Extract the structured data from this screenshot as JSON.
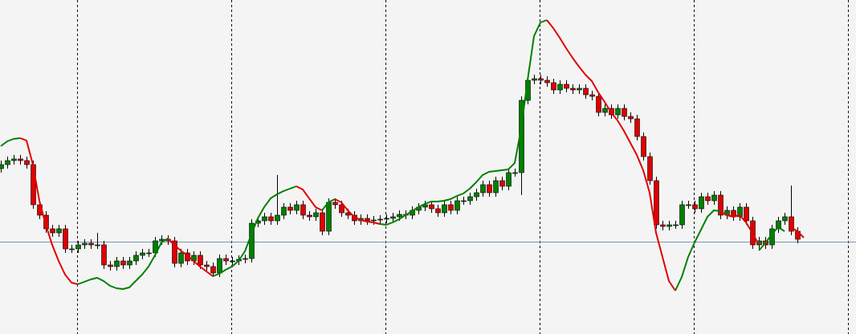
{
  "chart_data": {
    "type": "candlestick",
    "ylim": [
      0,
      416
    ],
    "xlim": [
      0,
      133
    ],
    "xgrid": [
      12,
      36,
      60,
      84,
      108,
      132
    ],
    "hline": 115,
    "up_color": "#008000",
    "down_color": "#e00000",
    "open": [
      206,
      211,
      216,
      218,
      216,
      211,
      161,
      148,
      131,
      126,
      131,
      106,
      106,
      111,
      113,
      111,
      111,
      86,
      84,
      91,
      86,
      91,
      98,
      101,
      101,
      116,
      118,
      116,
      88,
      101,
      91,
      98,
      86,
      84,
      76,
      94,
      91,
      91,
      93,
      94,
      138,
      141,
      146,
      141,
      148,
      158,
      154,
      161,
      148,
      146,
      151,
      128,
      164,
      161,
      151,
      148,
      141,
      144,
      141,
      142,
      143,
      144,
      146,
      149,
      148,
      154,
      158,
      161,
      156,
      151,
      161,
      154,
      166,
      166,
      171,
      176,
      186,
      176,
      191,
      184,
      201,
      201,
      291,
      316,
      318,
      316,
      313,
      304,
      311,
      306,
      304,
      306,
      298,
      296,
      276,
      281,
      273,
      281,
      271,
      268,
      246,
      221,
      191,
      136,
      134,
      136,
      136,
      161,
      161,
      156,
      171,
      166,
      173,
      148,
      154,
      146,
      158,
      141,
      111,
      116,
      111,
      131,
      141,
      146,
      128
    ],
    "high": [
      216,
      221,
      223,
      223,
      221,
      216,
      166,
      153,
      136,
      136,
      136,
      111,
      116,
      118,
      118,
      126,
      116,
      91,
      96,
      96,
      96,
      103,
      106,
      106,
      121,
      123,
      123,
      121,
      106,
      106,
      103,
      103,
      91,
      89,
      99,
      99,
      96,
      98,
      99,
      143,
      146,
      151,
      151,
      198,
      163,
      163,
      166,
      166,
      153,
      156,
      156,
      169,
      169,
      166,
      156,
      153,
      149,
      149,
      147,
      148,
      149,
      151,
      154,
      154,
      159,
      163,
      166,
      166,
      161,
      166,
      166,
      171,
      171,
      176,
      181,
      191,
      191,
      196,
      196,
      206,
      206,
      296,
      321,
      323,
      323,
      321,
      318,
      316,
      316,
      311,
      311,
      311,
      303,
      301,
      286,
      286,
      286,
      286,
      276,
      273,
      251,
      226,
      196,
      141,
      141,
      141,
      166,
      166,
      166,
      176,
      176,
      178,
      178,
      159,
      159,
      163,
      163,
      146,
      121,
      121,
      136,
      146,
      151,
      185,
      133
    ],
    "low": [
      201,
      206,
      211,
      211,
      206,
      156,
      143,
      126,
      121,
      121,
      101,
      101,
      101,
      106,
      106,
      106,
      81,
      79,
      79,
      81,
      81,
      86,
      93,
      96,
      96,
      111,
      111,
      83,
      83,
      86,
      86,
      81,
      79,
      71,
      71,
      86,
      86,
      86,
      88,
      89,
      133,
      136,
      136,
      136,
      143,
      149,
      149,
      143,
      141,
      141,
      123,
      123,
      156,
      146,
      143,
      136,
      136,
      136,
      136,
      137,
      138,
      139,
      141,
      143,
      143,
      149,
      153,
      151,
      146,
      146,
      149,
      149,
      161,
      161,
      166,
      171,
      171,
      171,
      179,
      179,
      196,
      173,
      286,
      311,
      311,
      308,
      299,
      299,
      301,
      299,
      299,
      293,
      291,
      271,
      271,
      268,
      268,
      266,
      263,
      241,
      216,
      186,
      131,
      129,
      129,
      131,
      131,
      156,
      151,
      151,
      161,
      161,
      143,
      143,
      141,
      141,
      136,
      106,
      106,
      106,
      106,
      126,
      136,
      123,
      113
    ],
    "close": [
      211,
      216,
      218,
      216,
      211,
      161,
      148,
      131,
      126,
      131,
      106,
      106,
      111,
      113,
      111,
      111,
      86,
      84,
      91,
      86,
      91,
      98,
      101,
      101,
      116,
      118,
      116,
      88,
      101,
      91,
      98,
      86,
      84,
      76,
      94,
      91,
      91,
      93,
      94,
      138,
      141,
      146,
      141,
      148,
      158,
      154,
      161,
      148,
      146,
      151,
      128,
      164,
      161,
      151,
      148,
      141,
      144,
      141,
      142,
      143,
      144,
      146,
      149,
      148,
      154,
      158,
      161,
      156,
      151,
      161,
      154,
      166,
      166,
      171,
      176,
      186,
      176,
      191,
      184,
      201,
      201,
      291,
      316,
      318,
      316,
      313,
      304,
      311,
      306,
      304,
      306,
      298,
      296,
      276,
      281,
      273,
      281,
      271,
      268,
      246,
      221,
      191,
      136,
      134,
      136,
      136,
      161,
      161,
      156,
      171,
      166,
      173,
      148,
      154,
      146,
      158,
      141,
      111,
      116,
      111,
      131,
      141,
      146,
      128,
      118
    ],
    "series": [
      {
        "color": "#008000",
        "values": [
          234,
          240,
          243,
          244,
          null,
          null,
          null,
          null,
          null,
          null,
          null,
          null,
          62,
          65,
          68,
          70,
          66,
          60,
          57,
          56,
          58,
          66,
          74,
          84,
          98,
          114,
          119,
          null,
          null,
          null,
          null,
          null,
          null,
          72,
          75,
          80,
          84,
          91,
          103,
          124,
          144,
          158,
          169,
          174,
          178,
          181,
          184,
          null,
          null,
          null,
          154,
          164,
          168,
          null,
          null,
          null,
          null,
          null,
          null,
          137,
          136,
          139,
          143,
          148,
          153,
          158,
          162,
          165,
          165,
          166,
          168,
          172,
          175,
          181,
          189,
          198,
          202,
          203,
          204,
          205,
          213,
          256,
          316,
          371,
          388,
          391,
          null,
          null,
          null,
          null,
          null,
          null,
          null,
          null,
          null,
          null,
          null,
          null,
          null,
          null,
          null,
          null,
          null,
          null,
          null,
          54,
          71,
          96,
          114,
          130,
          146,
          154,
          153,
          null,
          null,
          null,
          null,
          null,
          104,
          113,
          124,
          133,
          128,
          null,
          null
        ]
      },
      {
        "color": "#e00000",
        "values": [
          null,
          null,
          null,
          244,
          241,
          211,
          166,
          136,
          111,
          91,
          74,
          64,
          62,
          null,
          null,
          null,
          null,
          null,
          null,
          null,
          null,
          null,
          null,
          null,
          null,
          null,
          119,
          111,
          104,
          98,
          91,
          84,
          78,
          72,
          null,
          null,
          null,
          null,
          null,
          null,
          null,
          null,
          null,
          null,
          null,
          null,
          184,
          180,
          169,
          158,
          154,
          null,
          168,
          164,
          154,
          146,
          142,
          140,
          139,
          137,
          null,
          null,
          null,
          null,
          null,
          null,
          null,
          null,
          null,
          null,
          null,
          null,
          null,
          null,
          null,
          null,
          null,
          null,
          null,
          null,
          null,
          null,
          null,
          null,
          null,
          391,
          381,
          369,
          356,
          344,
          333,
          323,
          315,
          301,
          289,
          276,
          266,
          253,
          238,
          223,
          204,
          176,
          126,
          96,
          66,
          54,
          null,
          null,
          null,
          null,
          null,
          null,
          153,
          148,
          146,
          148,
          139,
          126,
          111,
          null,
          null,
          null,
          null,
          133,
          128,
          120
        ]
      }
    ]
  }
}
